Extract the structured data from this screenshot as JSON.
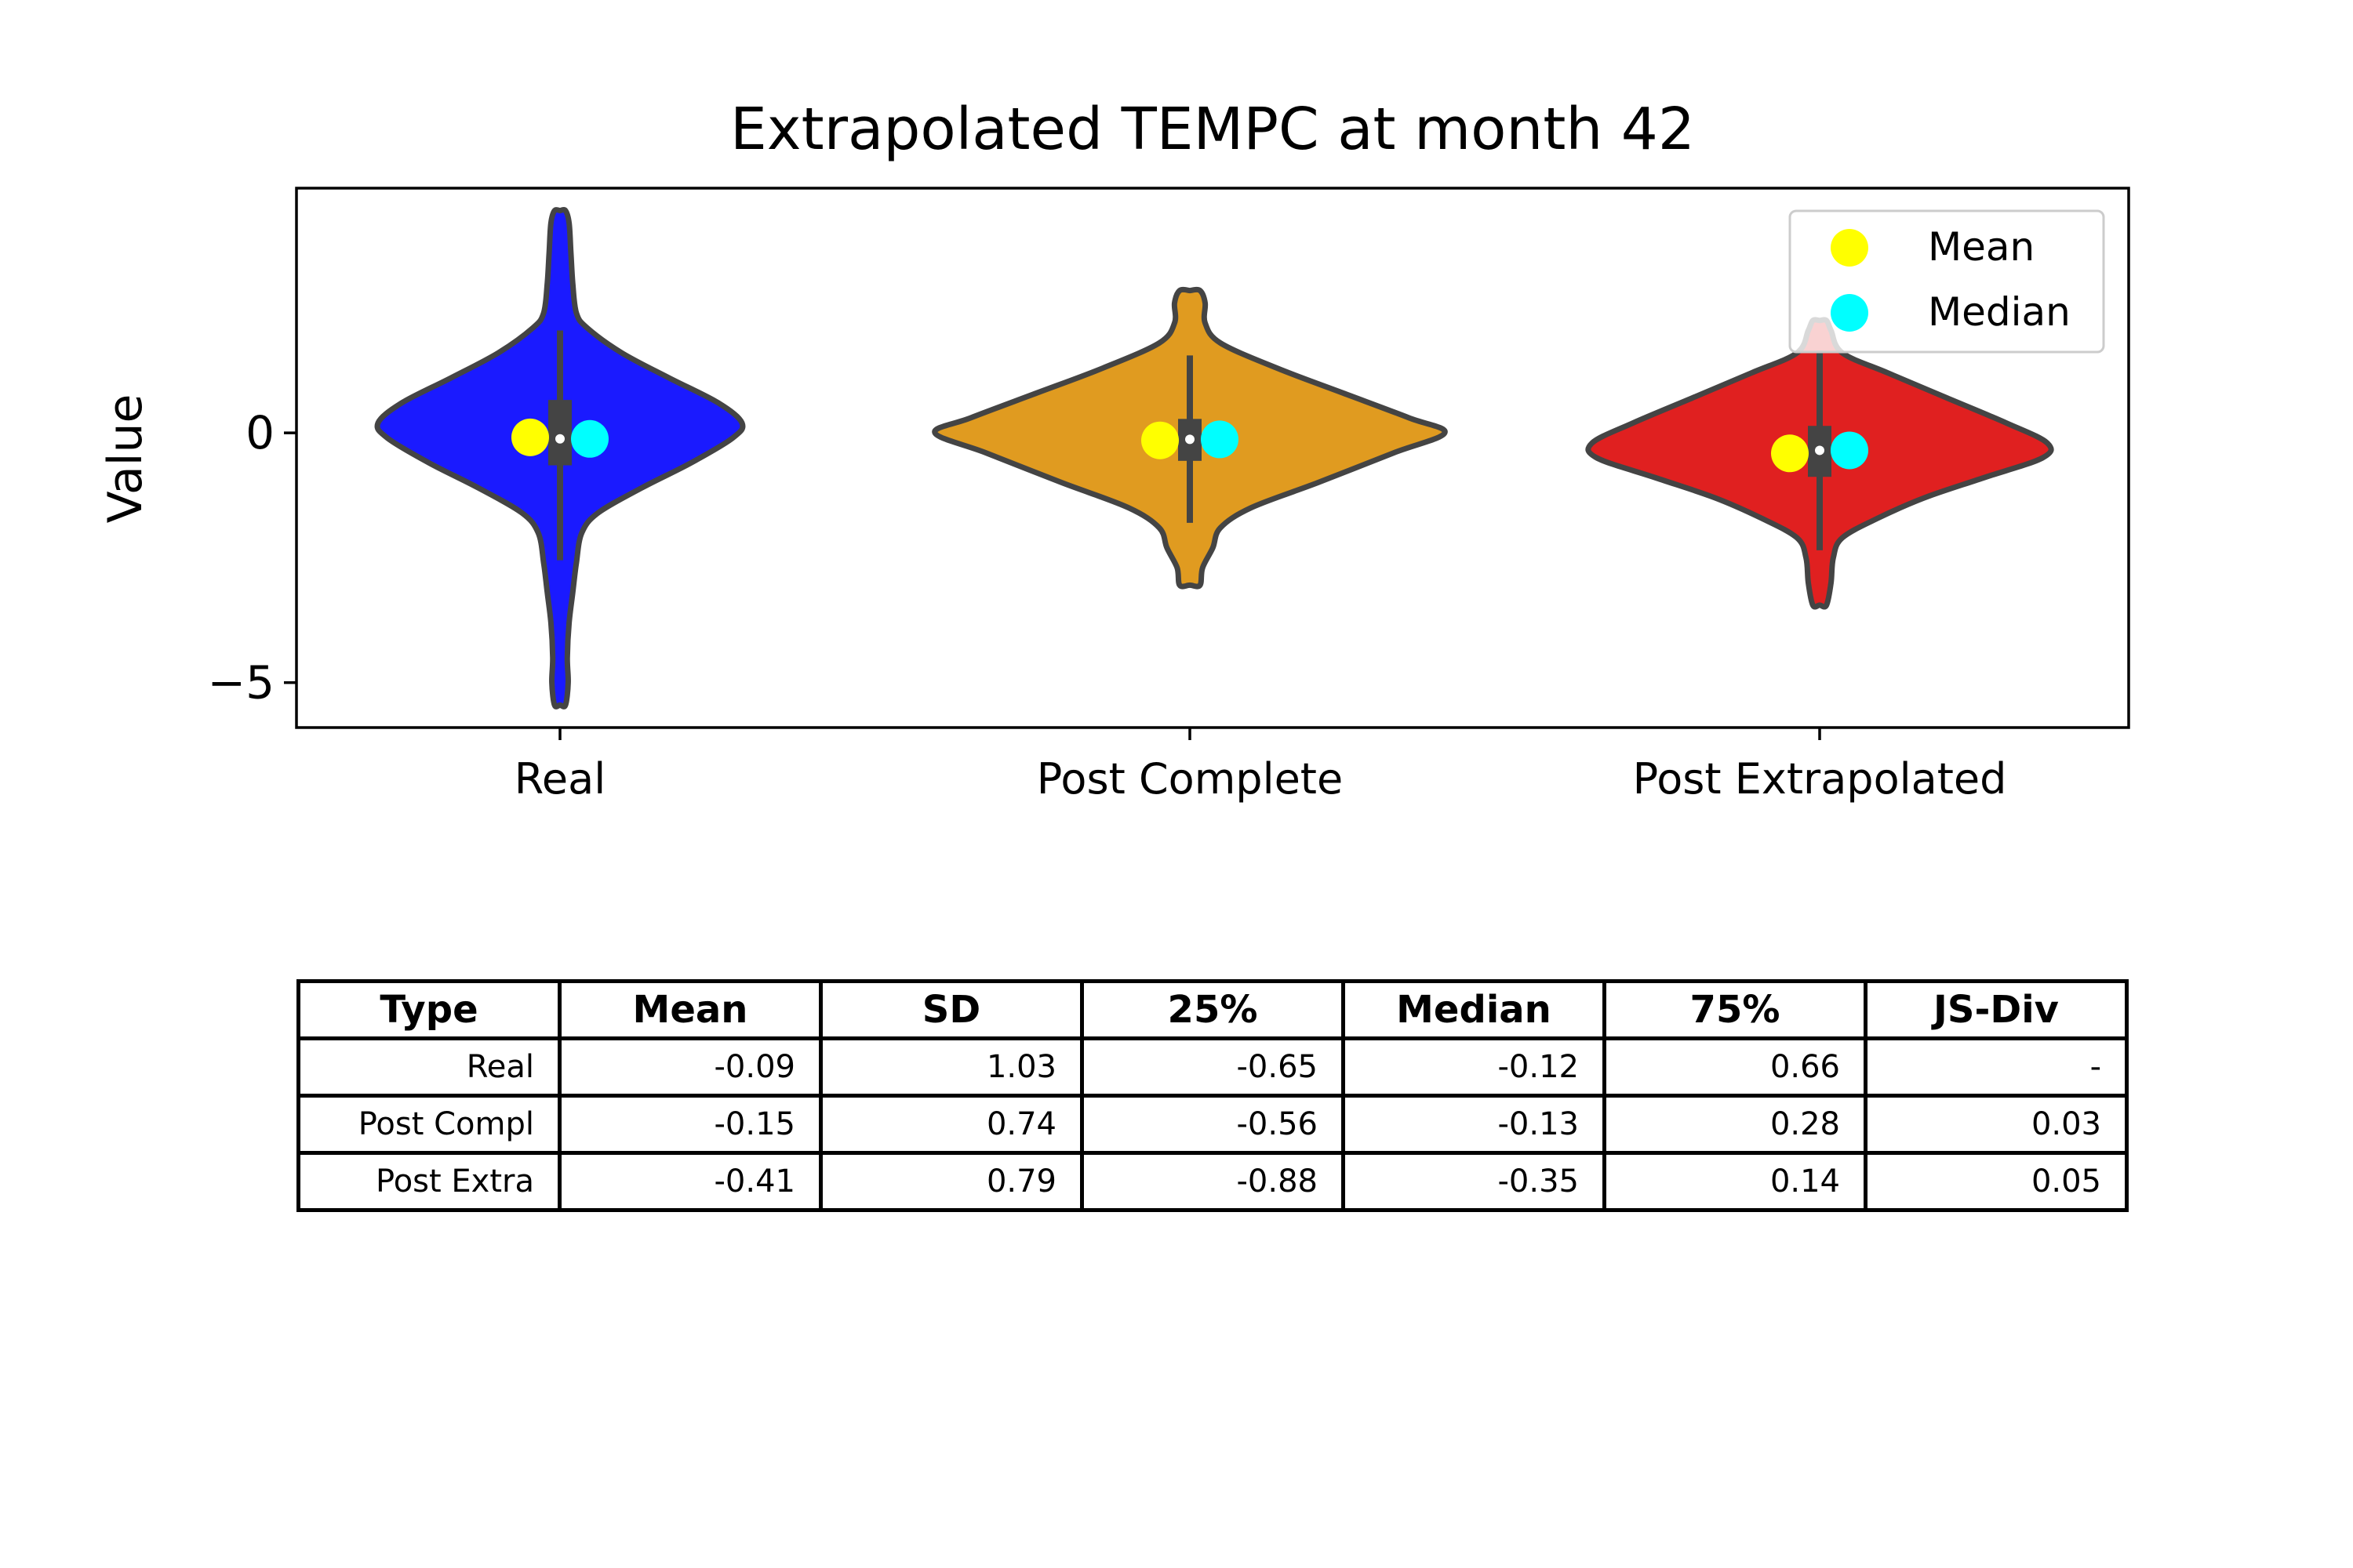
{
  "chart_data": {
    "type": "violin",
    "title": "Extrapolated TEMPC at month 42",
    "xlabel": "",
    "ylabel": "Value",
    "ylim": [
      -5.9,
      4.9
    ],
    "yticks": [
      0,
      -5
    ],
    "ytick_labels": [
      "0",
      "−5"
    ],
    "categories": [
      "Real",
      "Post Complete",
      "Post Extrapolated"
    ],
    "colors": [
      "#1a1aff",
      "#e09b20",
      "#e02020"
    ],
    "legend": {
      "placement": "top-right",
      "entries": [
        {
          "label": "Mean",
          "color": "#ffff00"
        },
        {
          "label": "Median",
          "color": "#00ffff"
        }
      ]
    },
    "series": [
      {
        "name": "Real",
        "mean": -0.09,
        "median": -0.12,
        "q1": -0.65,
        "q3": 0.66,
        "whisker_low": -2.55,
        "whisker_high": 2.05,
        "min": -5.45,
        "max": 4.45
      },
      {
        "name": "Post Complete",
        "mean": -0.15,
        "median": -0.13,
        "q1": -0.56,
        "q3": 0.28,
        "whisker_low": -1.8,
        "whisker_high": 1.55,
        "min": -3.05,
        "max": 2.85
      },
      {
        "name": "Post Extrapolated",
        "mean": -0.41,
        "median": -0.35,
        "q1": -0.88,
        "q3": 0.14,
        "whisker_low": -2.35,
        "whisker_high": 1.65,
        "min": -3.45,
        "max": 2.25
      }
    ]
  },
  "table": {
    "headers": [
      "Type",
      "Mean",
      "SD",
      "25%",
      "Median",
      "75%",
      "JS-Div"
    ],
    "rows": [
      [
        "Real",
        "-0.09",
        "1.03",
        "-0.65",
        "-0.12",
        "0.66",
        "-"
      ],
      [
        "Post Compl",
        "-0.15",
        "0.74",
        "-0.56",
        "-0.13",
        "0.28",
        "0.03"
      ],
      [
        "Post Extra",
        "-0.41",
        "0.79",
        "-0.88",
        "-0.35",
        "0.14",
        "0.05"
      ]
    ]
  }
}
